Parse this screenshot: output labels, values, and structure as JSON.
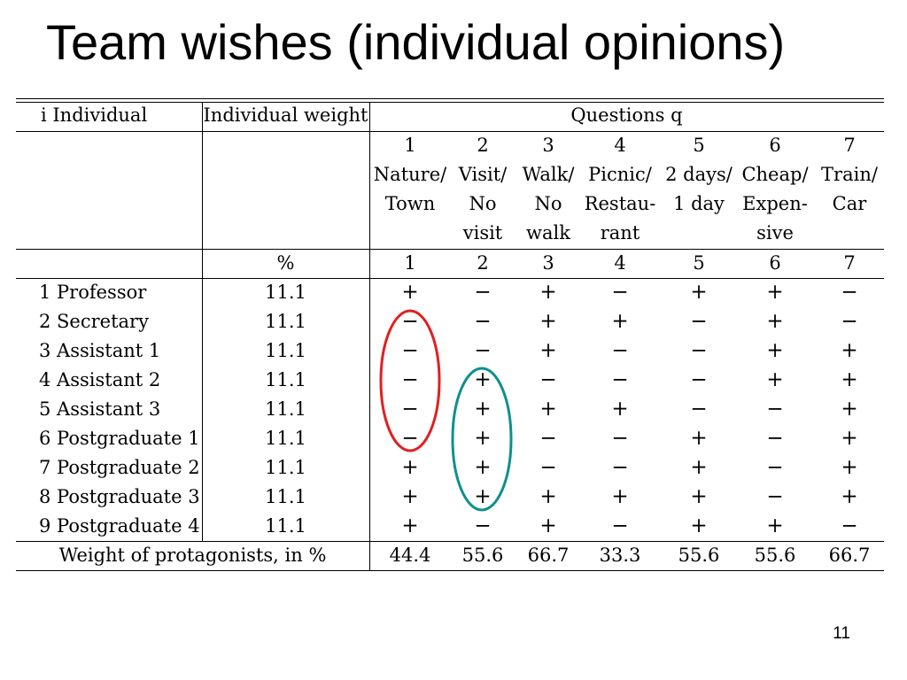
{
  "title": "Team wishes (individual opinions)",
  "table": {
    "header": {
      "individual": "i Individual",
      "weight": "Individual weight",
      "questions": "Questions q"
    },
    "questions": [
      {
        "num": "1",
        "lines": [
          "Nature/",
          "Town"
        ]
      },
      {
        "num": "2",
        "lines": [
          "Visit/",
          "No",
          "visit"
        ]
      },
      {
        "num": "3",
        "lines": [
          "Walk/",
          "No",
          "walk"
        ]
      },
      {
        "num": "4",
        "lines": [
          "Picnic/",
          "Restau-",
          "rant"
        ]
      },
      {
        "num": "5",
        "lines": [
          "2 days/",
          "1 day"
        ]
      },
      {
        "num": "6",
        "lines": [
          "Cheap/",
          "Expen-",
          "sive"
        ]
      },
      {
        "num": "7",
        "lines": [
          "Train/",
          "Car"
        ]
      }
    ],
    "weight_unit": "%",
    "question_indices": [
      "1",
      "2",
      "3",
      "4",
      "5",
      "6",
      "7"
    ],
    "rows": [
      {
        "label": "1 Professor",
        "weight": "11.1",
        "answers": [
          "+",
          "−",
          "+",
          "−",
          "+",
          "+",
          "−"
        ]
      },
      {
        "label": "2 Secretary",
        "weight": "11.1",
        "answers": [
          "−",
          "−",
          "+",
          "+",
          "−",
          "+",
          "−"
        ]
      },
      {
        "label": "3 Assistant 1",
        "weight": "11.1",
        "answers": [
          "−",
          "−",
          "+",
          "−",
          "−",
          "+",
          "+"
        ]
      },
      {
        "label": "4 Assistant 2",
        "weight": "11.1",
        "answers": [
          "−",
          "+",
          "−",
          "−",
          "−",
          "+",
          "+"
        ]
      },
      {
        "label": "5 Assistant 3",
        "weight": "11.1",
        "answers": [
          "−",
          "+",
          "+",
          "+",
          "−",
          "−",
          "+"
        ]
      },
      {
        "label": "6 Postgraduate 1",
        "weight": "11.1",
        "answers": [
          "−",
          "+",
          "−",
          "−",
          "+",
          "−",
          "+"
        ]
      },
      {
        "label": "7 Postgraduate 2",
        "weight": "11.1",
        "answers": [
          "+",
          "+",
          "−",
          "−",
          "+",
          "−",
          "+"
        ]
      },
      {
        "label": "8 Postgraduate 3",
        "weight": "11.1",
        "answers": [
          "+",
          "+",
          "+",
          "+",
          "+",
          "−",
          "+"
        ]
      },
      {
        "label": "9 Postgraduate 4",
        "weight": "11.1",
        "answers": [
          "+",
          "−",
          "+",
          "−",
          "+",
          "+",
          "−"
        ]
      }
    ],
    "footer": {
      "label": "Weight of protagonists, in %",
      "values": [
        "44.4",
        "55.6",
        "66.7",
        "33.3",
        "55.6",
        "55.6",
        "66.7"
      ]
    }
  },
  "annotations": {
    "red_ellipse_color": "#e02020",
    "teal_ellipse_color": "#0f8f8f"
  },
  "page_number": "11"
}
